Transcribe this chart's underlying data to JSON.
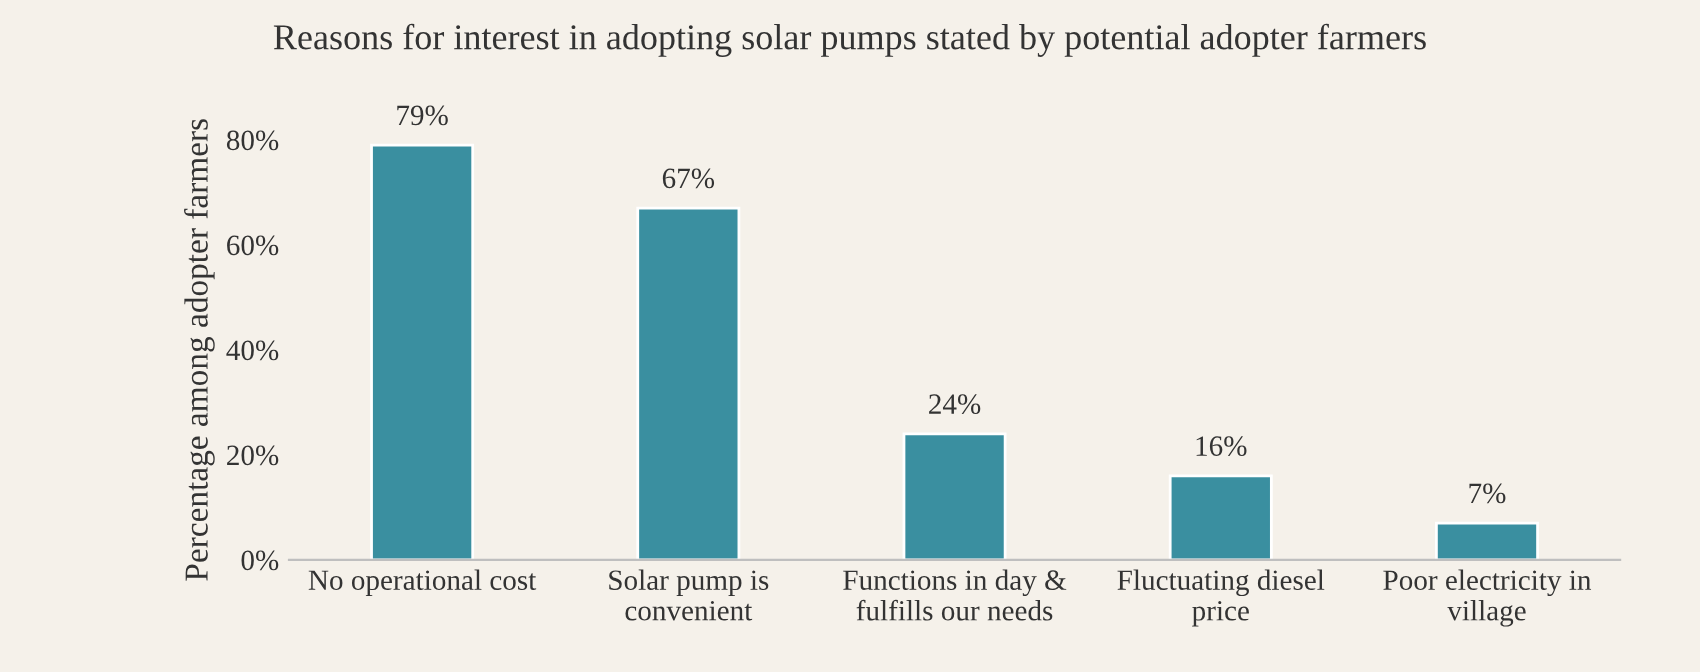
{
  "chart_data": {
    "type": "bar",
    "title": "Reasons for interest in adopting solar pumps stated by potential adopter farmers",
    "ylabel": "Percentage among adopter farmers",
    "categories": [
      "No operational cost",
      "Solar pump is\nconvenient",
      "Functions in day &\nfulfills our needs",
      "Fluctuating diesel\nprice",
      "Poor electricity in\nvillage"
    ],
    "values": [
      79,
      67,
      24,
      16,
      7
    ],
    "value_labels": [
      "79%",
      "67%",
      "24%",
      "16%",
      "7%"
    ],
    "color": "#3a8fa0",
    "ylim": [
      0,
      80
    ],
    "yticks": [
      {
        "value": 0,
        "label": "0%"
      },
      {
        "value": 20,
        "label": "20%"
      },
      {
        "value": 40,
        "label": "40%"
      },
      {
        "value": 60,
        "label": "60%"
      },
      {
        "value": 80,
        "label": "80%"
      }
    ],
    "grid": false,
    "legend": false
  }
}
